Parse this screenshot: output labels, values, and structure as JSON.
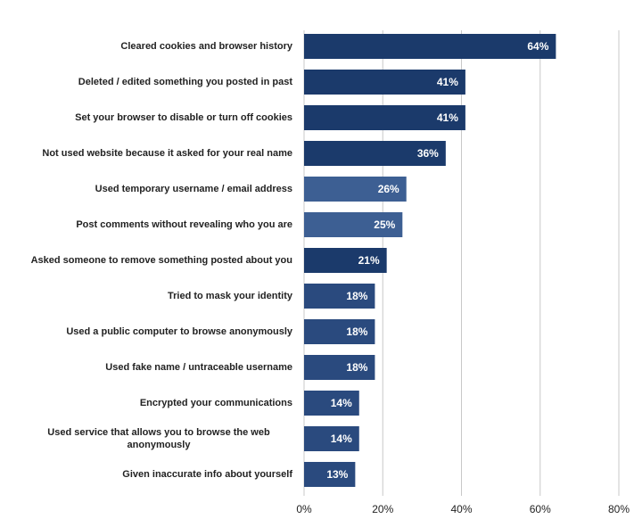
{
  "chart_data": {
    "type": "hbar",
    "categories": [
      "Cleared cookies and browser history",
      "Deleted / edited something you posted in past",
      "Set your browser to disable or turn off cookies",
      "Not used website because it asked for your real name",
      "Used temporary username / email address",
      "Post comments without revealing who you are",
      "Asked someone to remove something posted about you",
      "Tried to mask your identity",
      "Used a public computer to browse anonymously",
      "Used fake name / untraceable username",
      "Encrypted your communications",
      "Used service that allows you to browse the web anonymously",
      "Given inaccurate info about yourself"
    ],
    "values": [
      64,
      41,
      41,
      36,
      26,
      25,
      21,
      18,
      18,
      18,
      14,
      14,
      13
    ],
    "value_labels": [
      "64%",
      "41%",
      "41%",
      "36%",
      "26%",
      "25%",
      "21%",
      "18%",
      "18%",
      "18%",
      "14%",
      "14%",
      "13%"
    ],
    "colors": [
      "#1b3a6b",
      "#1b3a6b",
      "#1b3a6b",
      "#1b3a6b",
      "#3d5f93",
      "#3d5f93",
      "#1b3a6b",
      "#2a4a7e",
      "#2a4a7e",
      "#2a4a7e",
      "#2a4a7e",
      "#2a4a7e",
      "#2a4a7e"
    ],
    "xlim": [
      0,
      80
    ],
    "xticks": [
      {
        "value": 0,
        "label": "0%"
      },
      {
        "value": 20,
        "label": "20%"
      },
      {
        "value": 40,
        "label": "40%"
      },
      {
        "value": 60,
        "label": "60%"
      },
      {
        "value": 80,
        "label": "80%"
      }
    ],
    "grid": true
  }
}
